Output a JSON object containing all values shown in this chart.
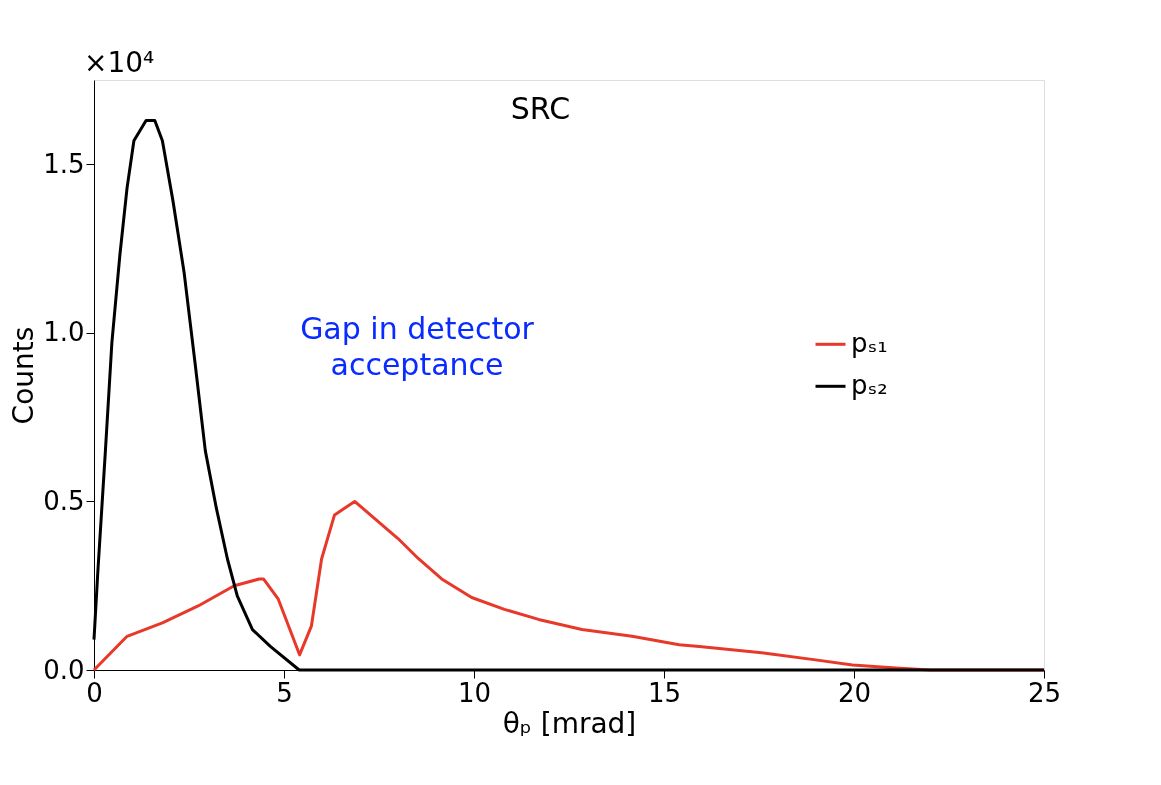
{
  "chart_data": {
    "type": "line",
    "title": "SRC",
    "xlabel": "θₚ [mrad]",
    "ylabel": "Counts",
    "annotations": [
      "×10⁴",
      "Gap in detector\nacceptance"
    ],
    "xlim": [
      0,
      25
    ],
    "xticks": [
      0,
      5,
      10,
      15,
      20,
      25
    ],
    "ylim": [
      0,
      1.75
    ],
    "yticks": [
      {
        "value": 0,
        "label": "0.0"
      },
      0.5,
      {
        "value": 1,
        "label": "1.0"
      },
      1.5
    ],
    "grid": false,
    "legend": "right",
    "line_style": "solid",
    "marker": "none",
    "series": [
      {
        "name": "pₛ₁",
        "color": "#e8382a",
        "x": [
          0,
          0.87,
          1.8,
          2.74,
          3.69,
          4.35,
          4.46,
          4.85,
          5.41,
          5.72,
          5.99,
          6.33,
          6.86,
          7.38,
          8.0,
          8.54,
          9.15,
          9.94,
          10.8,
          11.7,
          12.84,
          14.16,
          15.4,
          15.93,
          17.67,
          18.99,
          19.96,
          21.2,
          22,
          25
        ],
        "values": [
          0,
          0.1,
          0.14,
          0.19,
          0.25,
          0.27,
          0.27,
          0.21,
          0.045,
          0.13,
          0.33,
          0.46,
          0.5,
          0.45,
          0.39,
          0.33,
          0.27,
          0.215,
          0.18,
          0.15,
          0.12,
          0.1,
          0.075,
          0.07,
          0.05,
          0.03,
          0.015,
          0.005,
          0,
          0
        ]
      },
      {
        "name": "pₛ₂",
        "color": "#000000",
        "x": [
          0,
          0.1,
          0.3,
          0.47,
          0.68,
          0.87,
          1.05,
          1.37,
          1.6,
          1.8,
          2.08,
          2.37,
          2.66,
          2.93,
          3.22,
          3.51,
          3.77,
          4.17,
          4.64,
          5.4,
          25
        ],
        "values": [
          0.09,
          0.29,
          0.65,
          0.97,
          1.23,
          1.43,
          1.57,
          1.63,
          1.63,
          1.57,
          1.39,
          1.18,
          0.91,
          0.65,
          0.48,
          0.33,
          0.22,
          0.12,
          0.07,
          0,
          0
        ]
      }
    ]
  }
}
